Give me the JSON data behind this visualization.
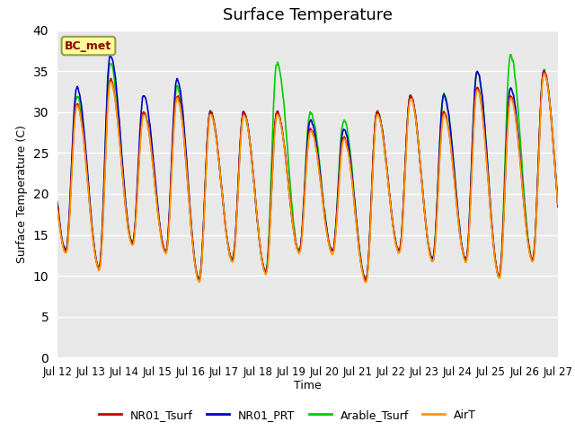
{
  "title": "Surface Temperature",
  "xlabel": "Time",
  "ylabel": "Surface Temperature (C)",
  "ylim": [
    0,
    40
  ],
  "yticks": [
    0,
    5,
    10,
    15,
    20,
    25,
    30,
    35,
    40
  ],
  "xticklabels": [
    "Jul 12",
    "Jul 13",
    "Jul 14",
    "Jul 15",
    "Jul 16",
    "Jul 17",
    "Jul 18",
    "Jul 19",
    "Jul 20",
    "Jul 21",
    "Jul 22",
    "Jul 23",
    "Jul 24",
    "Jul 25",
    "Jul 26",
    "Jul 27"
  ],
  "legend_labels": [
    "NR01_Tsurf",
    "NR01_PRT",
    "Arable_Tsurf",
    "AirT"
  ],
  "colors": [
    "#cc0000",
    "#0000cc",
    "#00cc00",
    "#ff9900"
  ],
  "annotation_text": "BC_met",
  "annotation_bg": "#ffff99",
  "annotation_border": "#999944",
  "bg_color": "#e8e8e8",
  "fig_bg": "#ffffff",
  "peak_values": [
    31,
    34,
    30,
    32,
    30,
    30,
    30,
    28,
    27,
    30,
    32,
    30,
    33,
    32,
    35
  ],
  "trough_values": [
    13,
    11,
    14,
    13,
    9.5,
    12,
    10.5,
    13,
    13,
    9.5,
    13,
    12,
    12,
    10,
    12
  ],
  "arable_extra": [
    1,
    2,
    0,
    1,
    0,
    0,
    6,
    2,
    2,
    0,
    0,
    2,
    2,
    5,
    0
  ],
  "prt_extra": [
    2,
    3,
    2,
    2,
    0,
    0,
    0,
    1,
    1,
    0,
    0,
    2,
    2,
    1,
    0
  ]
}
